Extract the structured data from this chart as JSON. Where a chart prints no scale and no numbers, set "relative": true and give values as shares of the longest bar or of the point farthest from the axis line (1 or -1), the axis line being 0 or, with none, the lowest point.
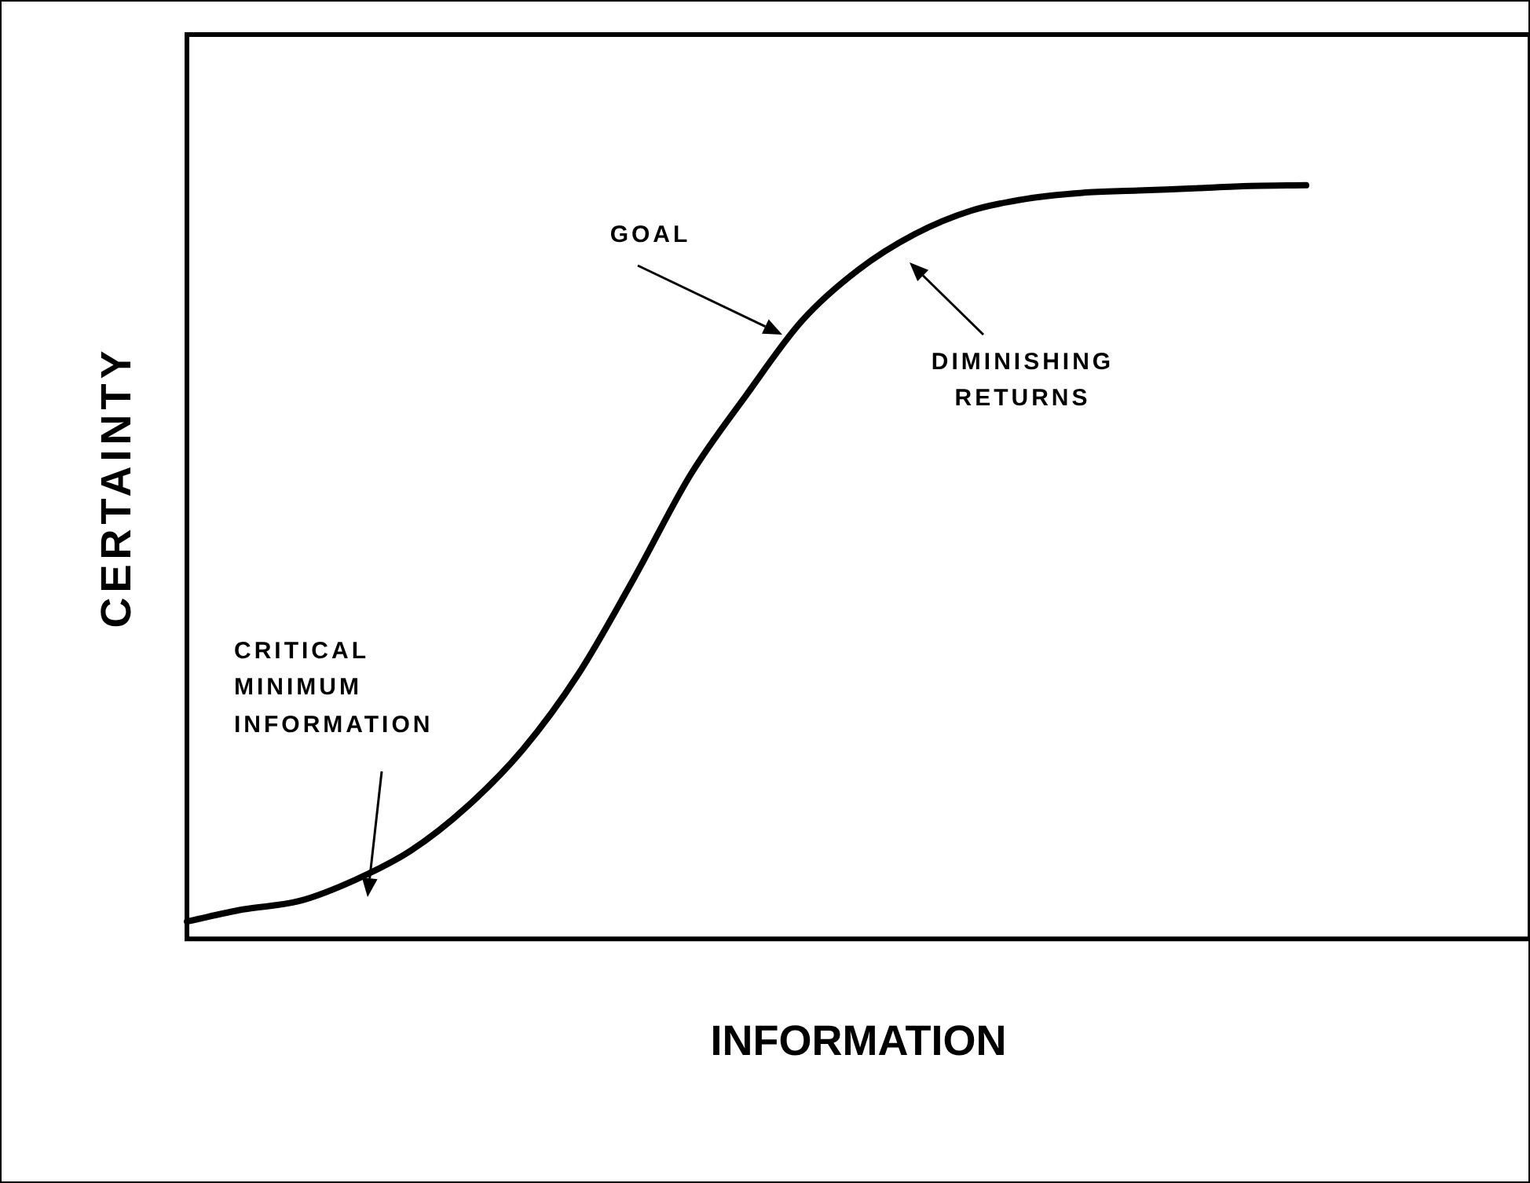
{
  "chart_data": {
    "type": "line",
    "relative": true,
    "xlabel": "INFORMATION",
    "ylabel": "CERTAINTY",
    "color": "#000000",
    "grid": false,
    "legend": false,
    "marker": "none",
    "line_style": "solid",
    "categories": [
      null,
      null,
      null,
      null,
      null,
      null,
      null,
      null,
      null,
      null,
      null,
      null,
      null,
      null,
      null,
      null,
      null,
      null,
      null,
      null,
      null,
      null,
      null,
      null,
      null
    ],
    "values": [
      0.023,
      0.039,
      0.05,
      0.078,
      0.117,
      0.175,
      0.251,
      0.352,
      0.48,
      0.616,
      0.722,
      0.821,
      0.888,
      0.935,
      0.966,
      0.982,
      0.99,
      0.993,
      0.996,
      0.999,
      1,
      null,
      null,
      null,
      null
    ],
    "annotations": [
      "GOAL",
      "DIMINISHING\nRETURNS",
      "CRITICAL\nMINIMUM\nINFORMATION"
    ]
  }
}
